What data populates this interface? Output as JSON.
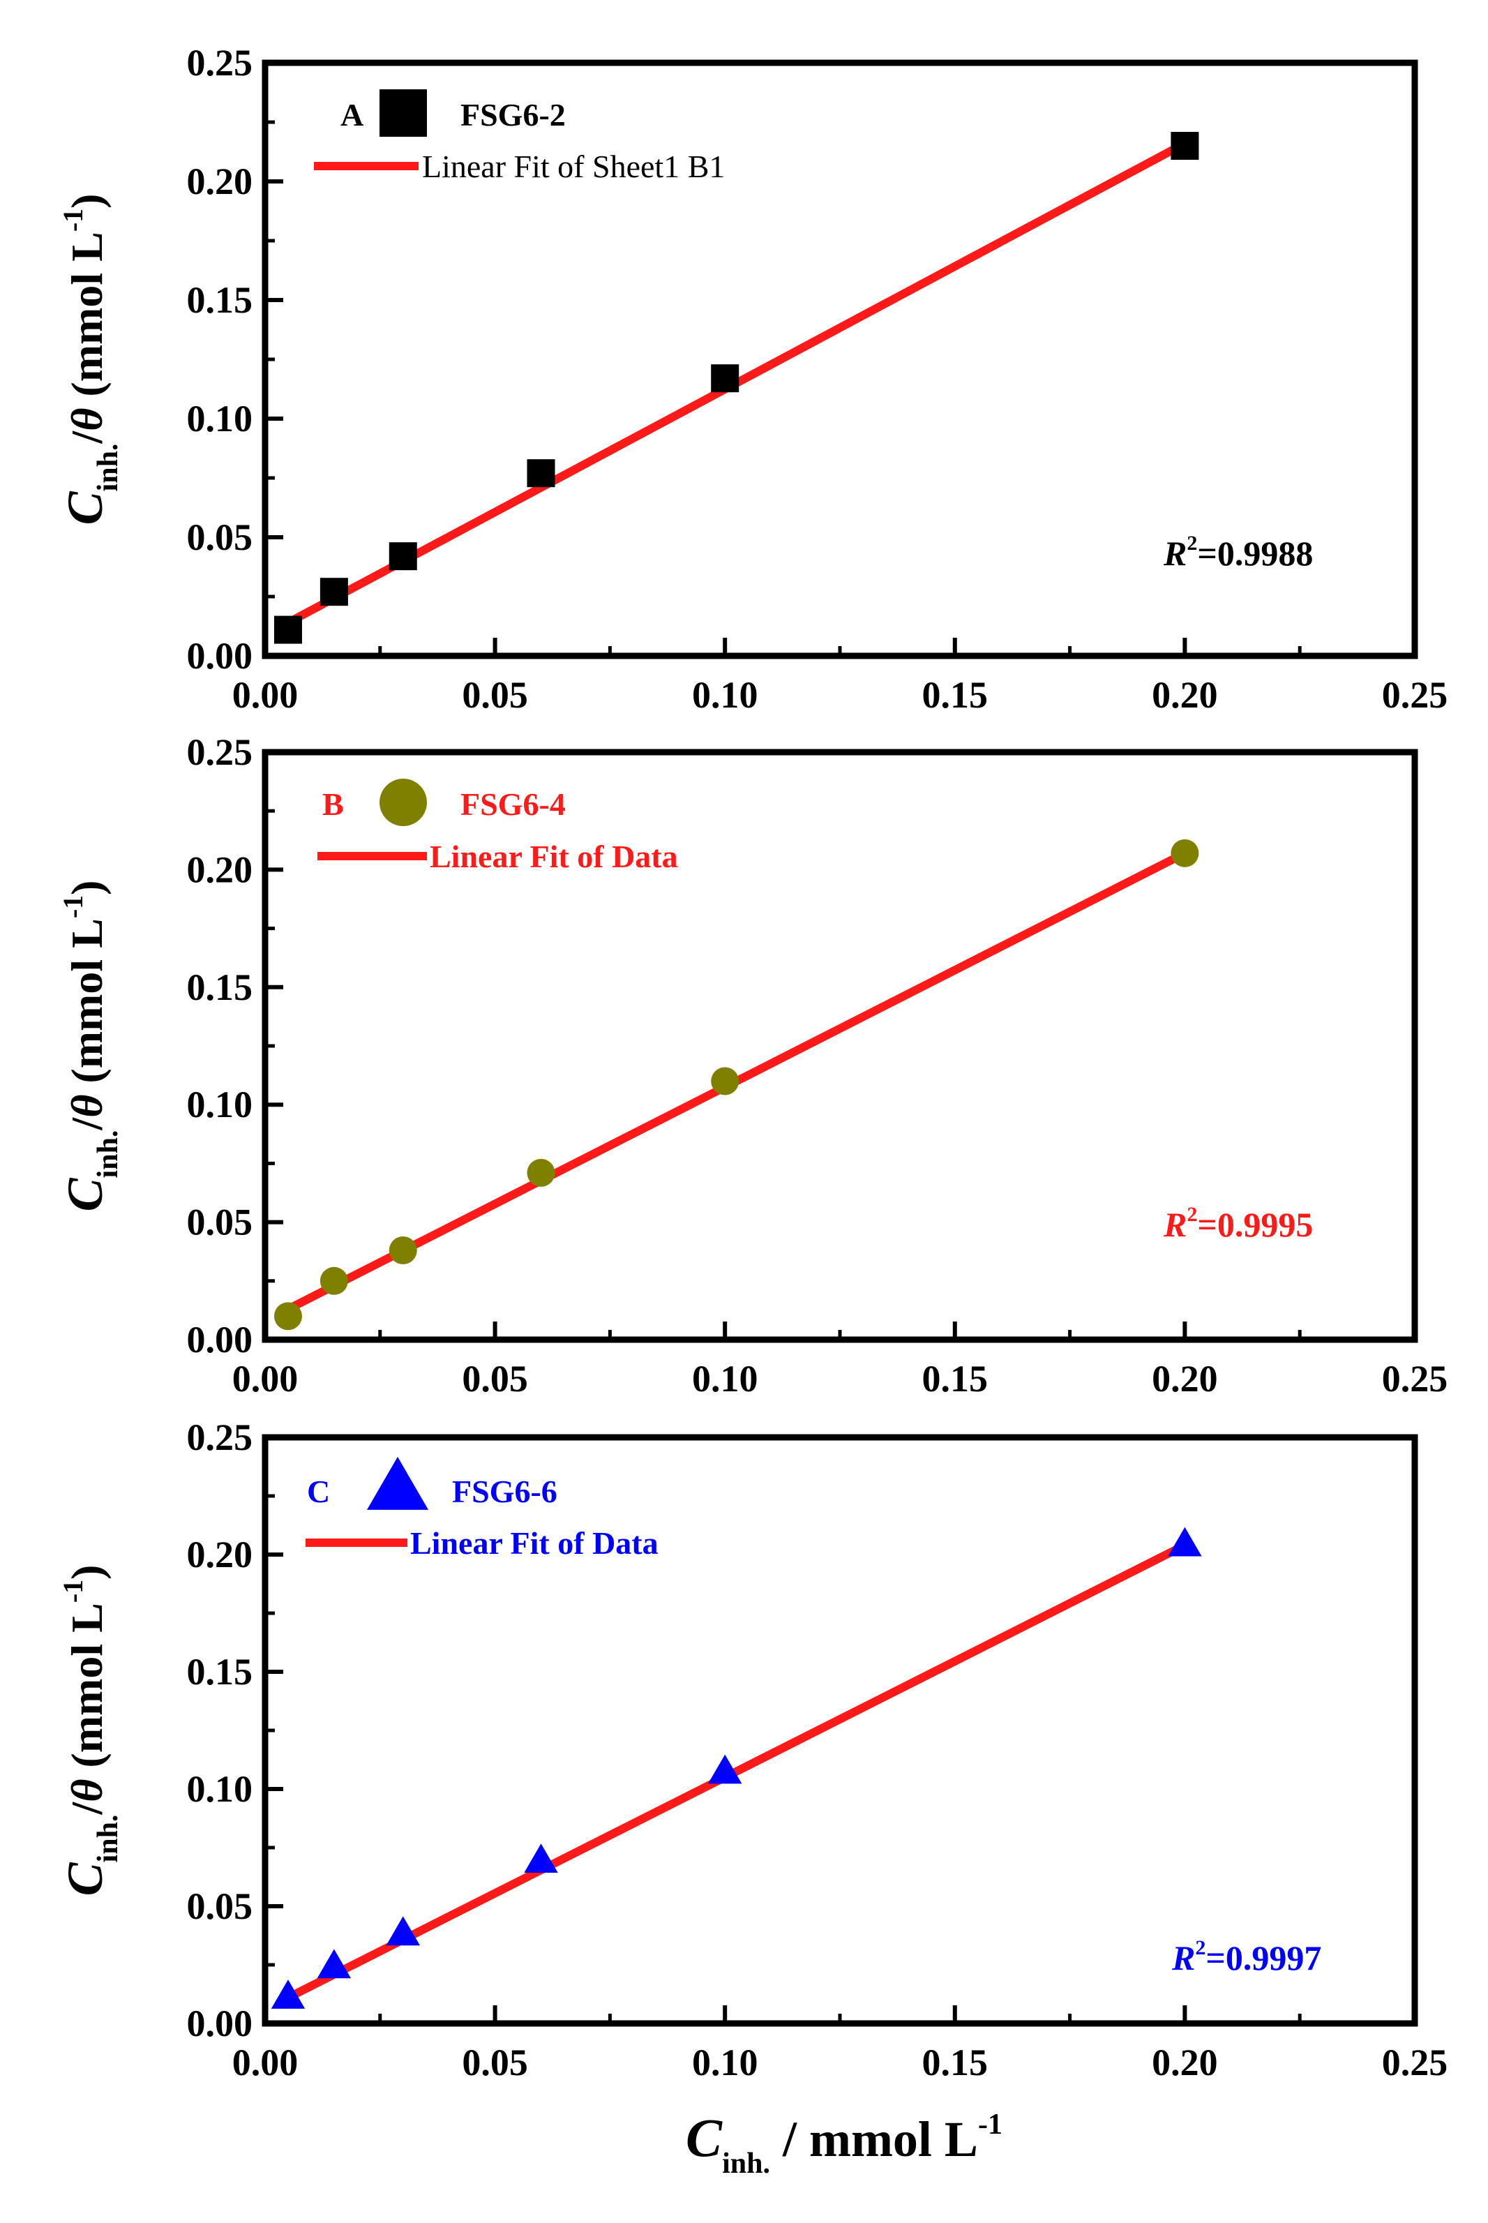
{
  "chart_data": [
    {
      "type": "scatter",
      "panel_label": "A",
      "series_name": "FSG6-2",
      "fit_label": "Linear Fit of Sheet1 B1",
      "r2_label": "R",
      "r2_sup": "2",
      "r2_value": "=0.9988",
      "marker": "square",
      "marker_color": "#000000",
      "text_color": "#000000",
      "fit_color": "#ff1a1a",
      "x": [
        0.005,
        0.015,
        0.03,
        0.06,
        0.1,
        0.2
      ],
      "y": [
        0.011,
        0.027,
        0.042,
        0.077,
        0.117,
        0.215
      ],
      "fit": {
        "x": [
          0.005,
          0.2
        ],
        "y": [
          0.014,
          0.216
        ]
      },
      "xlim": [
        0,
        0.25
      ],
      "ylim": [
        0,
        0.25
      ],
      "xticks": [
        "0.00",
        "0.05",
        "0.10",
        "0.15",
        "0.20",
        "0.25"
      ],
      "yticks": [
        "0.00",
        "0.05",
        "0.10",
        "0.15",
        "0.20",
        "0.25"
      ],
      "ylabel": {
        "main": "C",
        "sub": "inh.",
        "rest": "/θ (mmol L",
        "sup": "-1",
        "close": ")"
      }
    },
    {
      "type": "scatter",
      "panel_label": "B",
      "series_name": "FSG6-4",
      "fit_label": "Linear Fit of Data",
      "r2_label": "R",
      "r2_sup": "2",
      "r2_value": "=0.9995",
      "marker": "circle",
      "marker_color": "#808000",
      "text_color": "#ff1a1a",
      "fit_color": "#ff1a1a",
      "x": [
        0.005,
        0.015,
        0.03,
        0.06,
        0.1,
        0.2
      ],
      "y": [
        0.01,
        0.025,
        0.038,
        0.071,
        0.11,
        0.207
      ],
      "fit": {
        "x": [
          0.005,
          0.2
        ],
        "y": [
          0.013,
          0.207
        ]
      },
      "xlim": [
        0,
        0.25
      ],
      "ylim": [
        0,
        0.25
      ],
      "xticks": [
        "0.00",
        "0.05",
        "0.10",
        "0.15",
        "0.20",
        "0.25"
      ],
      "yticks": [
        "0.00",
        "0.05",
        "0.10",
        "0.15",
        "0.20",
        "0.25"
      ],
      "ylabel": {
        "main": "C",
        "sub": "inh.",
        "rest": "/θ (mmol L",
        "sup": "-1",
        "close": ")"
      }
    },
    {
      "type": "scatter",
      "panel_label": "C",
      "series_name": "FSG6-6",
      "fit_label": "Linear Fit of Data",
      "r2_label": "R",
      "r2_sup": "2",
      "r2_value": "=0.9997",
      "marker": "triangle",
      "marker_color": "#0000ff",
      "text_color": "#0000ff",
      "fit_color": "#ff1a1a",
      "x": [
        0.005,
        0.015,
        0.03,
        0.06,
        0.1,
        0.2
      ],
      "y": [
        0.011,
        0.024,
        0.038,
        0.069,
        0.107,
        0.204
      ],
      "fit": {
        "x": [
          0.005,
          0.2
        ],
        "y": [
          0.011,
          0.204
        ]
      },
      "xlim": [
        0,
        0.25
      ],
      "ylim": [
        0,
        0.25
      ],
      "xticks": [
        "0.00",
        "0.05",
        "0.10",
        "0.15",
        "0.20",
        "0.25"
      ],
      "yticks": [
        "0.00",
        "0.05",
        "0.10",
        "0.15",
        "0.20",
        "0.25"
      ],
      "ylabel": {
        "main": "C",
        "sub": "inh.",
        "rest": "/θ (mmol L",
        "sup": "-1",
        "close": ")"
      }
    }
  ],
  "xlabel": {
    "main": "C",
    "sub": "inh.",
    "rest": " / mmol L",
    "sup": "-1"
  }
}
